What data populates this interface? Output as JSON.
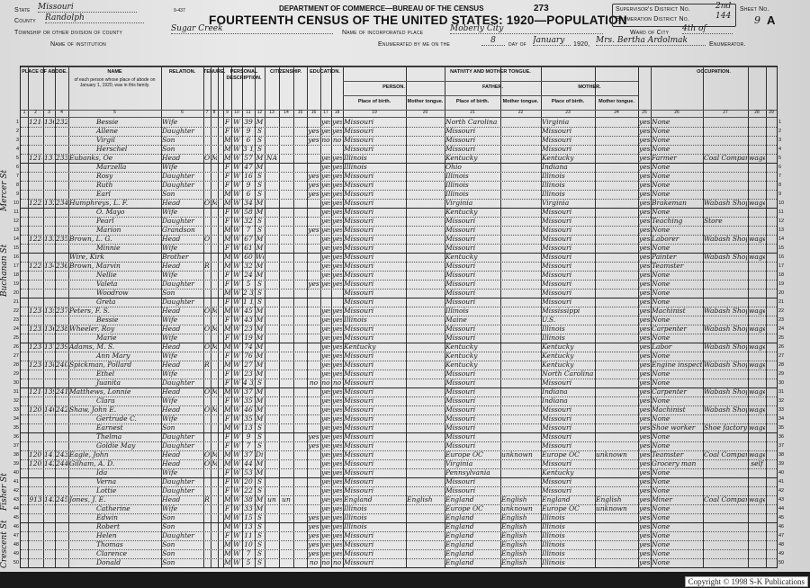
{
  "form": {
    "form_number": "9-437",
    "department": "DEPARTMENT OF COMMERCE—BUREAU OF THE CENSUS",
    "page_stamp": "273",
    "title": "FOURTEENTH CENSUS OF THE UNITED STATES: 1920—POPULATION",
    "state_label": "State",
    "state": "Missouri",
    "county_label": "County",
    "county": "Randolph",
    "township_label": "Township or other division of county",
    "township": "Sugar Creek",
    "institution_label": "Name of institution",
    "place_label": "Name of incorporated place",
    "place": "Moberly City",
    "enum_label": "Enumerated by me on the",
    "enum_day": "8",
    "day_of_label": "day of",
    "enum_month": "January",
    "year_label": "1920,",
    "enumerator": "Mrs. Bertha Ardolmak",
    "enumerator_label": "Enumerator.",
    "supervisor_label": "Supervisor's District No.",
    "supervisor": "2nd",
    "ed_label": "Enumeration District No.",
    "ed": "144",
    "ward_label": "Ward of City",
    "ward": "4th of",
    "sheet_label": "Sheet No.",
    "sheet": "9",
    "sheet_side": "A"
  },
  "headers": {
    "place_of_abode": "PLACE OF ABODE.",
    "name": "NAME",
    "name_sub": "of each person whose place of abode on January 1, 1920, was in this family.",
    "relation": "RELATION.",
    "tenure": "TENURE.",
    "personal": "PERSONAL DESCRIPTION.",
    "citizenship": "CITIZENSHIP.",
    "education": "EDUCATION.",
    "nativity": "NATIVITY AND MOTHER TONGUE.",
    "person": "PERSON.",
    "father": "FATHER.",
    "mother": "MOTHER.",
    "place_of_birth": "Place of birth.",
    "mother_tongue": "Mother tongue.",
    "occupation": "OCCUPATION.",
    "column_numbers": [
      "1",
      "2",
      "3",
      "4",
      "5",
      "6",
      "7",
      "8",
      "9",
      "10",
      "11",
      "12",
      "13",
      "14",
      "15",
      "16",
      "17",
      "18",
      "19",
      "20",
      "21",
      "22",
      "23",
      "24",
      "25",
      "26",
      "27",
      "28",
      "29"
    ]
  },
  "margin_notes": [
    "Mercer St",
    "Buchanan St",
    "Fisher St",
    "Crescent St"
  ],
  "rows": [
    {
      "house": "1214",
      "dwell": "130",
      "fam": "232",
      "name": "Bessie",
      "rel": "Wife",
      "sex": "F",
      "race": "W",
      "age": "39",
      "mar": "M",
      "read": "yes",
      "write": "yes",
      "birth": "Missouri",
      "fbirth": "North Carolina",
      "mbirth": "Virginia",
      "eng": "yes",
      "occ": "None"
    },
    {
      "name": "Allene",
      "rel": "Daughter",
      "sex": "F",
      "race": "W",
      "age": "9",
      "mar": "S",
      "school": "yes",
      "read": "yes",
      "write": "yes",
      "birth": "Missouri",
      "fbirth": "Missouri",
      "mbirth": "Missouri",
      "eng": "yes",
      "occ": "None"
    },
    {
      "name": "Virgil",
      "rel": "Son",
      "sex": "M",
      "race": "W",
      "age": "6",
      "mar": "S",
      "school": "yes",
      "read": "no",
      "write": "no",
      "birth": "Missouri",
      "fbirth": "Missouri",
      "mbirth": "Missouri",
      "eng": "yes",
      "occ": "None"
    },
    {
      "name": "Herschel",
      "rel": "Son",
      "sex": "M",
      "race": "W",
      "age": "3 1/2",
      "mar": "S",
      "birth": "Missouri",
      "fbirth": "Missouri",
      "mbirth": "Missouri",
      "eng": "yes",
      "occ": "None"
    },
    {
      "house": "1218",
      "dwell": "131",
      "fam": "233",
      "name": "Eubanks, Oe",
      "rel": "Head",
      "own": "O",
      "mort": "M",
      "sex": "M",
      "race": "W",
      "age": "57",
      "mar": "M",
      "imm": "NA",
      "read": "yes",
      "write": "yes",
      "birth": "Illinois",
      "fbirth": "Kentucky",
      "mbirth": "Kentucky",
      "eng": "yes",
      "occ": "Farmer",
      "ind": "Coal Company",
      "emp": "wage"
    },
    {
      "name": "Marzella",
      "rel": "Wife",
      "sex": "F",
      "race": "W",
      "age": "47",
      "mar": "M",
      "read": "yes",
      "write": "yes",
      "birth": "Illinois",
      "fbirth": "Ohio",
      "mbirth": "Indiana",
      "eng": "yes",
      "occ": "None"
    },
    {
      "name": "Rosy",
      "rel": "Daughter",
      "sex": "F",
      "race": "W",
      "age": "16",
      "mar": "S",
      "school": "yes",
      "read": "yes",
      "write": "yes",
      "birth": "Missouri",
      "fbirth": "Illinois",
      "mbirth": "Illinois",
      "eng": "yes",
      "occ": "None"
    },
    {
      "name": "Ruth",
      "rel": "Daughter",
      "sex": "F",
      "race": "W",
      "age": "9",
      "mar": "S",
      "school": "yes",
      "read": "yes",
      "write": "yes",
      "birth": "Missouri",
      "fbirth": "Illinois",
      "mbirth": "Illinois",
      "eng": "yes",
      "occ": "None"
    },
    {
      "name": "Earl",
      "rel": "Son",
      "sex": "M",
      "race": "W",
      "age": "6",
      "mar": "S",
      "school": "yes",
      "read": "yes",
      "write": "yes",
      "birth": "Missouri",
      "fbirth": "Illinois",
      "mbirth": "Illinois",
      "eng": "yes",
      "occ": "None"
    },
    {
      "house": "1222",
      "dwell": "132",
      "fam": "234",
      "name": "Humphreys, L. F.",
      "rel": "Head",
      "own": "O",
      "mort": "M",
      "sex": "M",
      "race": "W",
      "age": "34",
      "mar": "M",
      "read": "yes",
      "write": "yes",
      "birth": "Missouri",
      "fbirth": "Virginia",
      "mbirth": "Virginia",
      "eng": "yes",
      "occ": "Brakeman",
      "ind": "Wabash Shop",
      "emp": "wage"
    },
    {
      "name": "O. Mayo",
      "rel": "Wife",
      "sex": "F",
      "race": "W",
      "age": "58",
      "mar": "M",
      "read": "yes",
      "write": "yes",
      "birth": "Missouri",
      "fbirth": "Kentucky",
      "mbirth": "Missouri",
      "eng": "yes",
      "occ": "None"
    },
    {
      "name": "Pearl",
      "rel": "Daughter",
      "sex": "F",
      "race": "W",
      "age": "32",
      "mar": "S",
      "read": "yes",
      "write": "yes",
      "birth": "Missouri",
      "fbirth": "Missouri",
      "mbirth": "Missouri",
      "eng": "yes",
      "occ": "Teaching",
      "ind": "Store"
    },
    {
      "name": "Marion",
      "rel": "Grandson",
      "sex": "M",
      "race": "W",
      "age": "7",
      "mar": "S",
      "school": "yes",
      "read": "yes",
      "write": "yes",
      "birth": "Missouri",
      "fbirth": "Missouri",
      "mbirth": "Missouri",
      "eng": "yes",
      "occ": "None"
    },
    {
      "house": "1224",
      "dwell": "133",
      "fam": "235",
      "name": "Brown, L. G.",
      "rel": "Head",
      "own": "O",
      "sex": "M",
      "race": "W",
      "age": "67",
      "mar": "M",
      "read": "yes",
      "write": "yes",
      "birth": "Missouri",
      "fbirth": "Missouri",
      "mbirth": "Missouri",
      "eng": "yes",
      "occ": "Laborer",
      "ind": "Wabash Shop",
      "emp": "wage"
    },
    {
      "name": "Minnie",
      "rel": "Wife",
      "sex": "F",
      "race": "W",
      "age": "61",
      "mar": "M",
      "read": "yes",
      "write": "yes",
      "birth": "Missouri",
      "fbirth": "Missouri",
      "mbirth": "Missouri",
      "eng": "yes",
      "occ": "None"
    },
    {
      "name": "Wire, Kirk",
      "rel": "Brother",
      "sex": "M",
      "race": "W",
      "age": "60",
      "mar": "Wd",
      "read": "yes",
      "write": "yes",
      "birth": "Missouri",
      "fbirth": "Kentucky",
      "mbirth": "Missouri",
      "eng": "yes",
      "occ": "Painter",
      "ind": "Wabash Shop",
      "emp": "wage"
    },
    {
      "house": "1228",
      "dwell": "134",
      "fam": "236",
      "name": "Brown, Marvin",
      "rel": "Head",
      "own": "R",
      "sex": "M",
      "race": "W",
      "age": "32",
      "mar": "M",
      "read": "yes",
      "write": "yes",
      "birth": "Missouri",
      "fbirth": "Missouri",
      "mbirth": "Missouri",
      "eng": "yes",
      "occ": "Teamster"
    },
    {
      "name": "Nellie",
      "rel": "Wife",
      "sex": "F",
      "race": "W",
      "age": "24",
      "mar": "M",
      "read": "yes",
      "write": "yes",
      "birth": "Missouri",
      "fbirth": "Missouri",
      "mbirth": "Missouri",
      "eng": "yes",
      "occ": "None"
    },
    {
      "name": "Valeta",
      "rel": "Daughter",
      "sex": "F",
      "race": "W",
      "age": "5",
      "mar": "S",
      "school": "yes",
      "read": "yes",
      "write": "yes",
      "birth": "Missouri",
      "fbirth": "Missouri",
      "mbirth": "Missouri",
      "eng": "yes",
      "occ": "None"
    },
    {
      "name": "Woodrow",
      "rel": "Son",
      "sex": "M",
      "race": "W",
      "age": "2 3/12",
      "mar": "S",
      "birth": "Missouri",
      "fbirth": "Missouri",
      "mbirth": "Missouri",
      "eng": "yes",
      "occ": "None"
    },
    {
      "name": "Greta",
      "rel": "Daughter",
      "sex": "F",
      "race": "W",
      "age": "1 1/12",
      "mar": "S",
      "birth": "Missouri",
      "fbirth": "Missouri",
      "mbirth": "Missouri",
      "eng": "yes",
      "occ": "None"
    },
    {
      "house": "1230",
      "dwell": "135",
      "fam": "237",
      "name": "Peters, F. S.",
      "rel": "Head",
      "own": "O",
      "mort": "M",
      "sex": "M",
      "race": "W",
      "age": "45",
      "mar": "M",
      "read": "yes",
      "write": "yes",
      "birth": "Missouri",
      "fbirth": "Illinois",
      "mbirth": "Mississippi",
      "eng": "yes",
      "occ": "Machinist",
      "ind": "Wabash Shop",
      "emp": "wage"
    },
    {
      "name": "Bessie",
      "rel": "Wife",
      "sex": "F",
      "race": "W",
      "age": "43",
      "mar": "M",
      "read": "yes",
      "write": "yes",
      "birth": "Illinois",
      "fbirth": "Maine",
      "mbirth": "U.S.",
      "eng": "yes",
      "occ": "None"
    },
    {
      "house": "1232",
      "dwell": "136",
      "fam": "238",
      "name": "Wheeler, Roy",
      "rel": "Head",
      "own": "O",
      "mort": "M",
      "sex": "M",
      "race": "W",
      "age": "23",
      "mar": "M",
      "read": "yes",
      "write": "yes",
      "birth": "Missouri",
      "fbirth": "Missouri",
      "mbirth": "Illinois",
      "eng": "yes",
      "occ": "Carpenter",
      "ind": "Wabash Shop",
      "emp": "wage"
    },
    {
      "name": "Marie",
      "rel": "Wife",
      "sex": "F",
      "race": "W",
      "age": "19",
      "mar": "M",
      "read": "yes",
      "write": "yes",
      "birth": "Missouri",
      "fbirth": "Missouri",
      "mbirth": "Illinois",
      "eng": "yes",
      "occ": "None"
    },
    {
      "house": "1234",
      "dwell": "137",
      "fam": "239",
      "name": "Adams, M. S.",
      "rel": "Head",
      "own": "O",
      "mort": "M",
      "sex": "M",
      "race": "W",
      "age": "74",
      "mar": "M",
      "read": "yes",
      "write": "yes",
      "birth": "Kentucky",
      "fbirth": "Kentucky",
      "mbirth": "Kentucky",
      "eng": "yes",
      "occ": "Labor",
      "ind": "Wabash Shop",
      "emp": "wage"
    },
    {
      "name": "Ann Mary",
      "rel": "Wife",
      "sex": "F",
      "race": "W",
      "age": "76",
      "mar": "M",
      "read": "yes",
      "write": "yes",
      "birth": "Missouri",
      "fbirth": "Kentucky",
      "mbirth": "Kentucky",
      "eng": "yes",
      "occ": "None"
    },
    {
      "house": "1236",
      "dwell": "138",
      "fam": "240",
      "name": "Spickman, Pollard",
      "rel": "Head",
      "own": "R",
      "sex": "M",
      "race": "W",
      "age": "27",
      "mar": "M",
      "read": "yes",
      "write": "yes",
      "birth": "Missouri",
      "fbirth": "Kentucky",
      "mbirth": "Kentucky",
      "eng": "yes",
      "occ": "Engine inspector",
      "ind": "Wabash Shop",
      "emp": "wage"
    },
    {
      "name": "Ethel",
      "rel": "Wife",
      "sex": "F",
      "race": "W",
      "age": "23",
      "mar": "M",
      "read": "yes",
      "write": "yes",
      "birth": "Missouri",
      "fbirth": "Missouri",
      "mbirth": "North Carolina",
      "eng": "yes",
      "occ": "None"
    },
    {
      "name": "Juanita",
      "rel": "Daughter",
      "sex": "F",
      "race": "W",
      "age": "4 3/12",
      "mar": "S",
      "school": "no",
      "read": "no",
      "write": "no",
      "birth": "Missouri",
      "fbirth": "Missouri",
      "mbirth": "Missouri",
      "eng": "yes",
      "occ": "None"
    },
    {
      "house": "1216",
      "dwell": "139",
      "fam": "241",
      "name": "Matthews, Lonnie",
      "rel": "Head",
      "own": "O",
      "mort": "M",
      "sex": "M",
      "race": "W",
      "age": "37",
      "mar": "M",
      "read": "yes",
      "write": "yes",
      "birth": "Missouri",
      "fbirth": "Missouri",
      "mbirth": "Indiana",
      "eng": "yes",
      "occ": "Carpenter",
      "ind": "Wabash Shop",
      "emp": "wage"
    },
    {
      "name": "Clara",
      "rel": "Wife",
      "sex": "F",
      "race": "W",
      "age": "35",
      "mar": "M",
      "read": "yes",
      "write": "yes",
      "birth": "Missouri",
      "fbirth": "Missouri",
      "mbirth": "Indiana",
      "eng": "yes",
      "occ": "None"
    },
    {
      "house": "1209",
      "dwell": "140",
      "fam": "242",
      "name": "Shaw, John E.",
      "rel": "Head",
      "own": "O",
      "mort": "M",
      "sex": "M",
      "race": "W",
      "age": "46",
      "mar": "M",
      "read": "yes",
      "write": "yes",
      "birth": "Missouri",
      "fbirth": "Missouri",
      "mbirth": "Missouri",
      "eng": "yes",
      "occ": "Machinist",
      "ind": "Wabash Shop",
      "emp": "wage"
    },
    {
      "name": "Gertrude C.",
      "rel": "Wife",
      "sex": "F",
      "race": "W",
      "age": "35",
      "mar": "M",
      "read": "yes",
      "write": "yes",
      "birth": "Missouri",
      "fbirth": "Missouri",
      "mbirth": "Missouri",
      "eng": "yes",
      "occ": "None"
    },
    {
      "name": "Earnest",
      "rel": "Son",
      "sex": "M",
      "race": "W",
      "age": "13",
      "mar": "S",
      "read": "yes",
      "write": "yes",
      "birth": "Missouri",
      "fbirth": "Missouri",
      "mbirth": "Missouri",
      "eng": "yes",
      "occ": "Shoe worker",
      "ind": "Shoe factory",
      "emp": "wage"
    },
    {
      "name": "Thelma",
      "rel": "Daughter",
      "sex": "F",
      "race": "W",
      "age": "9",
      "mar": "S",
      "school": "yes",
      "read": "yes",
      "write": "yes",
      "birth": "Missouri",
      "fbirth": "Missouri",
      "mbirth": "Missouri",
      "eng": "yes",
      "occ": "None"
    },
    {
      "name": "Goldie May",
      "rel": "Daughter",
      "sex": "F",
      "race": "W",
      "age": "7",
      "mar": "S",
      "school": "yes",
      "read": "yes",
      "write": "yes",
      "birth": "Missouri",
      "fbirth": "Missouri",
      "mbirth": "Missouri",
      "eng": "yes",
      "occ": "None"
    },
    {
      "house": "1207",
      "dwell": "141",
      "fam": "243",
      "name": "Eagle, John",
      "rel": "Head",
      "own": "O",
      "mort": "M",
      "sex": "M",
      "race": "W",
      "age": "37",
      "mar": "Div",
      "read": "yes",
      "write": "yes",
      "birth": "Missouri",
      "fbirth": "Europe OC",
      "ftongue": "unknown",
      "mbirth": "Europe OC",
      "mtongue": "unknown",
      "eng": "yes",
      "occ": "Teamster",
      "ind": "Coal Company",
      "emp": "wage"
    },
    {
      "house": "1202",
      "dwell": "142",
      "fam": "244",
      "name": "Gilham, A. D.",
      "rel": "Head",
      "own": "O",
      "mort": "M",
      "sex": "M",
      "race": "W",
      "age": "44",
      "mar": "M",
      "read": "yes",
      "write": "yes",
      "birth": "Missouri",
      "fbirth": "Virginia",
      "mbirth": "Missouri",
      "eng": "yes",
      "occ": "Grocery man",
      "emp": "self"
    },
    {
      "name": "Ida",
      "rel": "Wife",
      "sex": "F",
      "race": "W",
      "age": "53",
      "mar": "M",
      "read": "yes",
      "write": "yes",
      "birth": "Missouri",
      "fbirth": "Pennsylvania",
      "mbirth": "Kentucky",
      "eng": "yes",
      "occ": "None"
    },
    {
      "name": "Verna",
      "rel": "Daughter",
      "sex": "F",
      "race": "W",
      "age": "20",
      "mar": "S",
      "read": "yes",
      "write": "yes",
      "birth": "Missouri",
      "fbirth": "Missouri",
      "mbirth": "Missouri",
      "eng": "yes",
      "occ": "None"
    },
    {
      "name": "Lottie",
      "rel": "Daughter",
      "sex": "F",
      "race": "W",
      "age": "22",
      "mar": "S",
      "read": "yes",
      "write": "yes",
      "birth": "Missouri",
      "fbirth": "Missouri",
      "mbirth": "Missouri",
      "eng": "yes",
      "occ": "None"
    },
    {
      "house": "913",
      "dwell": "143",
      "fam": "245",
      "name": "Jones, J. E.",
      "rel": "Head",
      "own": "R",
      "sex": "M",
      "race": "W",
      "age": "38",
      "mar": "M",
      "imm": "un",
      "nat": "un",
      "read": "yes",
      "write": "yes",
      "birth": "England",
      "tongue": "English",
      "fbirth": "England",
      "ftongue": "English",
      "mbirth": "England",
      "mtongue": "English",
      "eng": "yes",
      "occ": "Miner",
      "ind": "Coal Company",
      "emp": "wage"
    },
    {
      "name": "Catherine",
      "rel": "Wife",
      "sex": "F",
      "race": "W",
      "age": "33",
      "mar": "M",
      "read": "yes",
      "write": "yes",
      "birth": "Illinois",
      "fbirth": "Europe OC",
      "ftongue": "unknown",
      "mbirth": "Europe OC",
      "mtongue": "unknown",
      "eng": "yes",
      "occ": "None"
    },
    {
      "name": "Edwin",
      "rel": "Son",
      "sex": "M",
      "race": "W",
      "age": "15",
      "mar": "S",
      "school": "yes",
      "read": "yes",
      "write": "yes",
      "birth": "Illinois",
      "fbirth": "England",
      "ftongue": "English",
      "mbirth": "Illinois",
      "eng": "yes",
      "occ": "None"
    },
    {
      "name": "Robert",
      "rel": "Son",
      "sex": "M",
      "race": "W",
      "age": "13",
      "mar": "S",
      "school": "yes",
      "read": "yes",
      "write": "yes",
      "birth": "Illinois",
      "fbirth": "England",
      "ftongue": "English",
      "mbirth": "Illinois",
      "eng": "yes",
      "occ": "None"
    },
    {
      "name": "Helen",
      "rel": "Daughter",
      "sex": "F",
      "race": "W",
      "age": "11",
      "mar": "S",
      "school": "yes",
      "read": "yes",
      "write": "yes",
      "birth": "Missouri",
      "fbirth": "England",
      "ftongue": "English",
      "mbirth": "Illinois",
      "eng": "yes",
      "occ": "None"
    },
    {
      "name": "Thomas",
      "rel": "Son",
      "sex": "M",
      "race": "W",
      "age": "10",
      "mar": "S",
      "school": "yes",
      "read": "yes",
      "write": "yes",
      "birth": "Missouri",
      "fbirth": "England",
      "ftongue": "English",
      "mbirth": "Illinois",
      "eng": "yes",
      "occ": "None"
    },
    {
      "name": "Clarence",
      "rel": "Son",
      "sex": "M",
      "race": "W",
      "age": "7",
      "mar": "S",
      "school": "yes",
      "read": "yes",
      "write": "yes",
      "birth": "Missouri",
      "fbirth": "England",
      "ftongue": "English",
      "mbirth": "Illinois",
      "eng": "yes",
      "occ": "None"
    },
    {
      "name": "Donald",
      "rel": "Son",
      "sex": "M",
      "race": "W",
      "age": "5",
      "mar": "S",
      "school": "no",
      "read": "no",
      "write": "no",
      "birth": "Missouri",
      "fbirth": "England",
      "ftongue": "English",
      "mbirth": "Illinois",
      "eng": "yes",
      "occ": "None"
    }
  ],
  "copyright": "Copyright © 1998 S-K Publications"
}
